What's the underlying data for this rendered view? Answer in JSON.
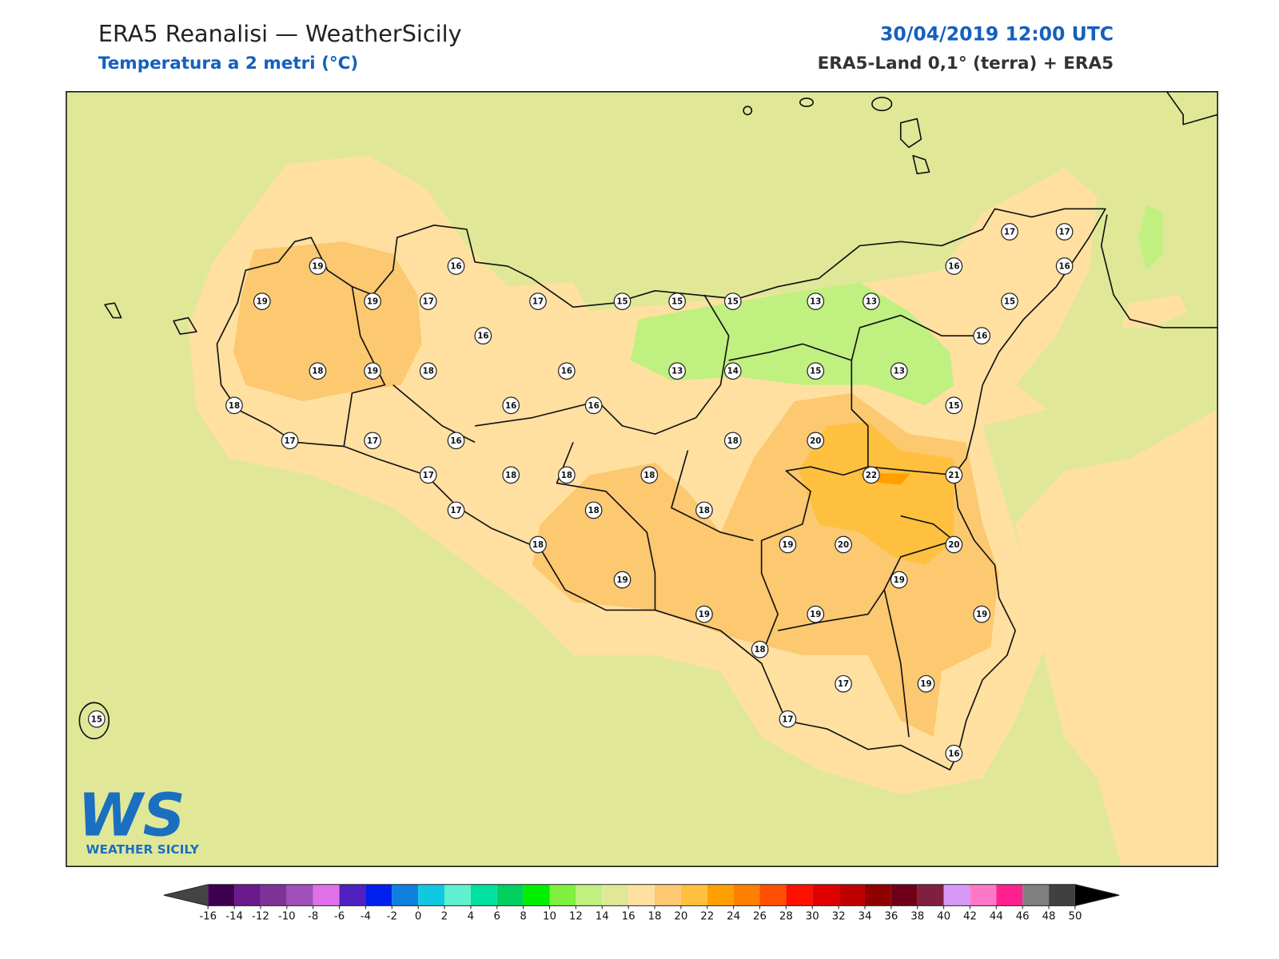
{
  "header": {
    "title": "ERA5 Reanalisi — WeatherSicily",
    "subtitle": "Temperatura a 2 metri (°C)",
    "datetime": "30/04/2019 12:00 UTC",
    "source": "ERA5-Land 0,1° (terra) + ERA5"
  },
  "logo": {
    "letters": "WS",
    "name": "WEATHER SICILY"
  },
  "stations": [
    19,
    16,
    19,
    19,
    17,
    17,
    15,
    15,
    15,
    13,
    13,
    15,
    17,
    17,
    16,
    16,
    16,
    16,
    18,
    19,
    18,
    16,
    13,
    14,
    15,
    13,
    18,
    16,
    16,
    15,
    17,
    17,
    16,
    18,
    20,
    17,
    18,
    18,
    18,
    22,
    21,
    17,
    18,
    18,
    18,
    19,
    20,
    20,
    19,
    19,
    19,
    19,
    19,
    18,
    17,
    19,
    17,
    16,
    15
  ],
  "colorbar": {
    "ticks": [
      -16,
      -14,
      -12,
      -10,
      -8,
      -6,
      -4,
      -2,
      0,
      2,
      4,
      6,
      8,
      10,
      12,
      14,
      16,
      18,
      20,
      22,
      24,
      26,
      28,
      30,
      32,
      34,
      36,
      38,
      40,
      42,
      44,
      46,
      48,
      50
    ],
    "colors": [
      "#3d0050",
      "#6a1a8a",
      "#7e3399",
      "#a050b8",
      "#e070e8",
      "#5020c0",
      "#0020f0",
      "#1080e0",
      "#10c8e0",
      "#60f0d0",
      "#00e0a0",
      "#00d060",
      "#00f000",
      "#80f040",
      "#c0f080",
      "#e0e898",
      "#ffe0a0",
      "#fcc870",
      "#ffc040",
      "#ffa000",
      "#ff8000",
      "#ff5000",
      "#ff1000",
      "#e00000",
      "#c00000",
      "#900000",
      "#700018",
      "#802040",
      "#d898f8",
      "#ff78c8",
      "#ff2090",
      "#808080",
      "#404040"
    ],
    "under_color": "#444444",
    "over_color": "#000000"
  }
}
